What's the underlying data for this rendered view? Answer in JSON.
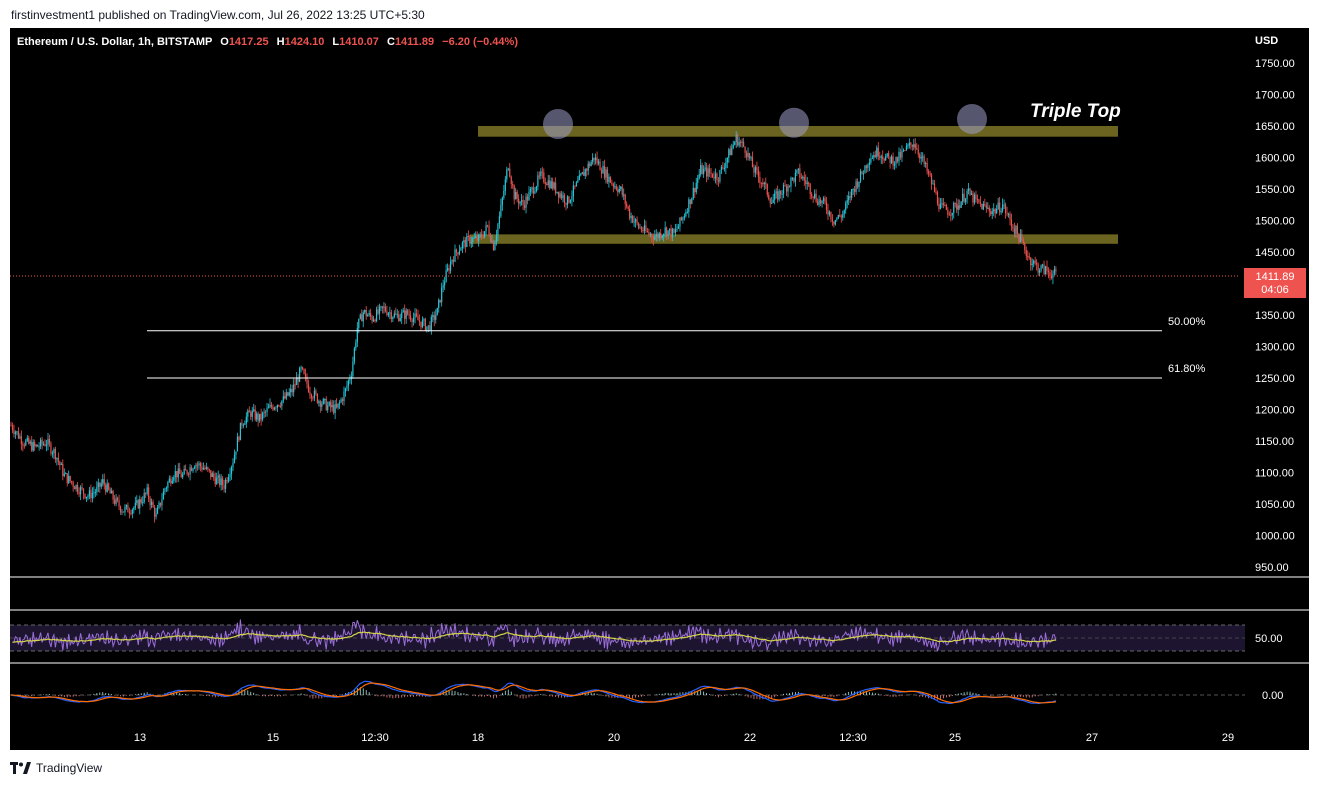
{
  "header": {
    "publish_line": "firstinvestment1 published on TradingView.com, Jul 26, 2022 13:25 UTC+5:30"
  },
  "legend": {
    "symbol": "Ethereum / U.S. Dollar, 1h, BITSTAMP",
    "o_label": "O",
    "o_value": "1417.25",
    "h_label": "H",
    "h_value": "1424.10",
    "l_label": "L",
    "l_value": "1410.07",
    "c_label": "C",
    "c_value": "1411.89",
    "change": "−6.20 (−0.44%)"
  },
  "price_axis": {
    "currency": "USD",
    "last_price": "1411.89",
    "countdown": "04:06"
  },
  "annotation": {
    "pattern_label": "Triple Top"
  },
  "colors": {
    "up": "#26c6da",
    "down": "#ef5350",
    "zone": "#6b6320",
    "circle": "#9c9cc8",
    "rsi": "#9a6ed8",
    "rsi_ma": "#d4d44a",
    "macd": "#2962ff",
    "signal": "#ff6d00"
  },
  "chart_data": {
    "type": "candlestick",
    "title": "Ethereum / U.S. Dollar, 1h, BITSTAMP",
    "currency": "USD",
    "x_tick_labels": [
      "13",
      "15",
      "12:30",
      "18",
      "20",
      "22",
      "12:30",
      "25",
      "27",
      "29"
    ],
    "y_ticks": [
      "950.00",
      "1000.00",
      "1050.00",
      "1100.00",
      "1150.00",
      "1200.00",
      "1250.00",
      "1300.00",
      "1350.00",
      "1400.00",
      "1450.00",
      "1500.00",
      "1550.00",
      "1600.00",
      "1650.00",
      "1700.00",
      "1750.00"
    ],
    "ylim": [
      930,
      1780
    ],
    "price_path": [
      [
        0,
        1175
      ],
      [
        8,
        1150
      ],
      [
        16,
        1140
      ],
      [
        24,
        1148
      ],
      [
        30,
        1130
      ],
      [
        36,
        1095
      ],
      [
        44,
        1078
      ],
      [
        52,
        1063
      ],
      [
        58,
        1072
      ],
      [
        62,
        1085
      ],
      [
        70,
        1055
      ],
      [
        76,
        1040
      ],
      [
        84,
        1045
      ],
      [
        92,
        1068
      ],
      [
        98,
        1030
      ],
      [
        104,
        1075
      ],
      [
        110,
        1100
      ],
      [
        116,
        1095
      ],
      [
        124,
        1115
      ],
      [
        130,
        1108
      ],
      [
        138,
        1090
      ],
      [
        144,
        1080
      ],
      [
        150,
        1120
      ],
      [
        156,
        1180
      ],
      [
        162,
        1195
      ],
      [
        168,
        1185
      ],
      [
        176,
        1205
      ],
      [
        184,
        1215
      ],
      [
        190,
        1230
      ],
      [
        196,
        1262
      ],
      [
        202,
        1230
      ],
      [
        208,
        1215
      ],
      [
        214,
        1205
      ],
      [
        220,
        1200
      ],
      [
        226,
        1230
      ],
      [
        230,
        1260
      ],
      [
        234,
        1330
      ],
      [
        238,
        1355
      ],
      [
        244,
        1345
      ],
      [
        252,
        1360
      ],
      [
        260,
        1348
      ],
      [
        268,
        1352
      ],
      [
        276,
        1340
      ],
      [
        282,
        1330
      ],
      [
        288,
        1355
      ],
      [
        292,
        1400
      ],
      [
        298,
        1440
      ],
      [
        304,
        1460
      ],
      [
        310,
        1470
      ],
      [
        316,
        1470
      ],
      [
        322,
        1490
      ],
      [
        326,
        1460
      ],
      [
        330,
        1505
      ],
      [
        336,
        1590
      ],
      [
        340,
        1540
      ],
      [
        346,
        1525
      ],
      [
        352,
        1548
      ],
      [
        358,
        1570
      ],
      [
        364,
        1560
      ],
      [
        370,
        1545
      ],
      [
        376,
        1530
      ],
      [
        382,
        1555
      ],
      [
        388,
        1580
      ],
      [
        394,
        1600
      ],
      [
        400,
        1580
      ],
      [
        406,
        1560
      ],
      [
        412,
        1548
      ],
      [
        418,
        1510
      ],
      [
        424,
        1490
      ],
      [
        430,
        1480
      ],
      [
        436,
        1475
      ],
      [
        442,
        1485
      ],
      [
        448,
        1478
      ],
      [
        454,
        1505
      ],
      [
        460,
        1540
      ],
      [
        466,
        1580
      ],
      [
        472,
        1575
      ],
      [
        478,
        1570
      ],
      [
        484,
        1600
      ],
      [
        490,
        1630
      ],
      [
        496,
        1615
      ],
      [
        502,
        1580
      ],
      [
        508,
        1560
      ],
      [
        514,
        1530
      ],
      [
        520,
        1545
      ],
      [
        526,
        1560
      ],
      [
        532,
        1575
      ],
      [
        538,
        1558
      ],
      [
        544,
        1535
      ],
      [
        550,
        1525
      ],
      [
        556,
        1500
      ],
      [
        562,
        1510
      ],
      [
        568,
        1545
      ],
      [
        574,
        1570
      ],
      [
        580,
        1600
      ],
      [
        586,
        1610
      ],
      [
        592,
        1598
      ],
      [
        598,
        1595
      ],
      [
        604,
        1610
      ],
      [
        610,
        1625
      ],
      [
        616,
        1595
      ],
      [
        622,
        1560
      ],
      [
        628,
        1520
      ],
      [
        634,
        1515
      ],
      [
        640,
        1525
      ],
      [
        646,
        1545
      ],
      [
        652,
        1530
      ],
      [
        658,
        1520
      ],
      [
        664,
        1515
      ],
      [
        670,
        1525
      ],
      [
        676,
        1495
      ],
      [
        682,
        1470
      ],
      [
        688,
        1440
      ],
      [
        694,
        1425
      ],
      [
        700,
        1420
      ],
      [
        706,
        1413
      ]
    ],
    "levels": [
      {
        "label": "50.00%",
        "value": 1325
      },
      {
        "label": "61.80%",
        "value": 1250
      }
    ],
    "zones": [
      {
        "name": "resistance",
        "low": 1633,
        "high": 1650
      },
      {
        "name": "support",
        "low": 1463,
        "high": 1478
      }
    ],
    "highlight_peaks": [
      1650,
      1652,
      1658
    ],
    "indicators": {
      "rsi_tick_label": "50.00",
      "macd_tick_label": "0.00"
    }
  }
}
